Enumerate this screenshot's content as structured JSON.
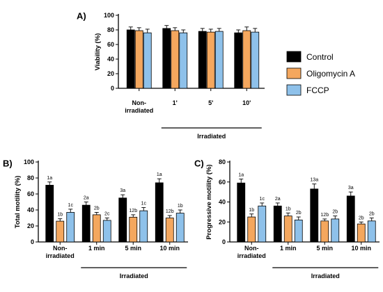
{
  "colors": {
    "control": "#000000",
    "oligomycin": "#f4a75e",
    "fccp": "#8ec1ea"
  },
  "legend": {
    "items": [
      "Control",
      "Oligomycin A",
      "FCCP"
    ]
  },
  "chart_data": [
    {
      "type": "bar",
      "panel_label": "A)",
      "ylabel": "Viability (%)",
      "ylim": [
        0,
        100
      ],
      "yticks": [
        0,
        20,
        40,
        60,
        80,
        100
      ],
      "categories": [
        "Non-\nirradiated",
        "1'",
        "5'",
        "10'"
      ],
      "group_label": "Irradiated",
      "series": [
        {
          "name": "Control",
          "values": [
            80,
            82,
            78,
            76
          ],
          "errors": [
            4,
            4,
            4,
            4
          ]
        },
        {
          "name": "Oligomycin A",
          "values": [
            79,
            79,
            77,
            79
          ],
          "errors": [
            4,
            4,
            4,
            5
          ]
        },
        {
          "name": "FCCP",
          "values": [
            76,
            76,
            78,
            77
          ],
          "errors": [
            5,
            4,
            4,
            5
          ]
        }
      ],
      "labels": null
    },
    {
      "type": "bar",
      "panel_label": "B)",
      "ylabel": "Total motility (%)",
      "ylim": [
        0,
        100
      ],
      "yticks": [
        0,
        20,
        40,
        60,
        80,
        100
      ],
      "categories": [
        "Non-\nirradiated",
        "1 min",
        "5 min",
        "10 min"
      ],
      "group_label": "Irradiated",
      "series": [
        {
          "name": "Control",
          "values": [
            71,
            46,
            55,
            74
          ],
          "errors": [
            4,
            4,
            4,
            5
          ]
        },
        {
          "name": "Oligomycin A",
          "values": [
            26,
            34,
            31,
            30
          ],
          "errors": [
            3,
            3,
            3,
            3
          ]
        },
        {
          "name": "FCCP",
          "values": [
            37,
            27,
            39,
            36
          ],
          "errors": [
            4,
            3,
            4,
            4
          ]
        }
      ],
      "labels": [
        [
          "1a",
          "2a",
          "3a",
          "1a"
        ],
        [
          "1b",
          "2b",
          "12b",
          "12b"
        ],
        [
          "1c",
          "2c",
          "1c",
          "1b"
        ]
      ]
    },
    {
      "type": "bar",
      "panel_label": "C)",
      "ylabel": "Progressive motility (%)",
      "ylim": [
        0,
        80
      ],
      "yticks": [
        0,
        20,
        40,
        60,
        80
      ],
      "categories": [
        "Non-\nirradiated",
        "1 min",
        "5 min",
        "10 min"
      ],
      "group_label": "Irradiated",
      "series": [
        {
          "name": "Control",
          "values": [
            59,
            36,
            53,
            46
          ],
          "errors": [
            4,
            3,
            5,
            4
          ]
        },
        {
          "name": "Oligomycin A",
          "values": [
            25,
            26,
            21,
            18
          ],
          "errors": [
            3,
            3,
            2,
            2
          ]
        },
        {
          "name": "FCCP",
          "values": [
            36,
            22,
            23,
            21
          ],
          "errors": [
            3,
            3,
            3,
            3
          ]
        }
      ],
      "labels": [
        [
          "1a",
          "2a",
          "13a",
          "3a"
        ],
        [
          "1b",
          "1b",
          "12b",
          "2b"
        ],
        [
          "1c",
          "2b",
          "2b",
          "2b"
        ]
      ]
    }
  ]
}
